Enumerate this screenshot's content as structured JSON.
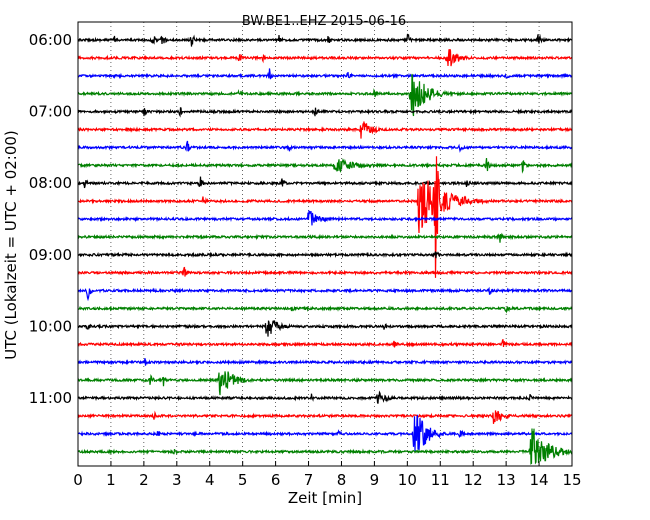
{
  "chart_data": {
    "type": "line",
    "title": "BW.BE1..EHZ 2015-06-16",
    "xlabel": "Zeit  [min]",
    "ylabel": "UTC (Lokalzeit = UTC + 02:00)",
    "xlim": [
      0,
      15
    ],
    "x_ticks": [
      "0",
      "1",
      "2",
      "3",
      "4",
      "5",
      "6",
      "7",
      "8",
      "9",
      "10",
      "11",
      "12",
      "13",
      "14",
      "15"
    ],
    "y_ticks": [
      {
        "row": 0,
        "label": "06:00"
      },
      {
        "row": 4,
        "label": "07:00"
      },
      {
        "row": 8,
        "label": "08:00"
      },
      {
        "row": 12,
        "label": "09:00"
      },
      {
        "row": 16,
        "label": "10:00"
      },
      {
        "row": 20,
        "label": "11:00"
      }
    ],
    "grid": "vertical-dotted",
    "series": [
      {
        "start": "06:00",
        "color": "#000000",
        "events": [
          {
            "t": 1.1,
            "a": 0.3
          },
          {
            "t": 2.25,
            "a": 0.5
          },
          {
            "t": 2.55,
            "a": 0.5
          },
          {
            "t": 3.45,
            "a": 0.5
          },
          {
            "t": 6.1,
            "a": 0.3
          },
          {
            "t": 7.6,
            "a": 0.3
          },
          {
            "t": 10.0,
            "a": 0.5
          },
          {
            "t": 13.95,
            "a": 0.6
          }
        ]
      },
      {
        "start": "06:15",
        "color": "#ff0000",
        "events": [
          {
            "t": 4.9,
            "a": 0.3
          },
          {
            "t": 5.6,
            "a": 0.3
          },
          {
            "t": 11.2,
            "a": 0.7,
            "w": 0.3
          }
        ]
      },
      {
        "start": "06:30",
        "color": "#0000ff",
        "events": [
          {
            "t": 5.8,
            "a": 0.5
          },
          {
            "t": 8.2,
            "a": 0.3
          },
          {
            "t": 13.0,
            "a": 0.3
          }
        ]
      },
      {
        "start": "06:45",
        "color": "#008000",
        "events": [
          {
            "t": 4.9,
            "a": 0.3
          },
          {
            "t": 9.0,
            "a": 0.3
          },
          {
            "t": 10.1,
            "a": 1.6,
            "w": 0.4
          }
        ]
      },
      {
        "start": "07:00",
        "color": "#000000",
        "events": [
          {
            "t": 2.0,
            "a": 0.3
          },
          {
            "t": 3.1,
            "a": 0.3
          },
          {
            "t": 7.2,
            "a": 0.3
          }
        ]
      },
      {
        "start": "07:15",
        "color": "#ff0000",
        "events": [
          {
            "t": 8.6,
            "a": 0.6,
            "w": 0.3
          }
        ]
      },
      {
        "start": "07:30",
        "color": "#0000ff",
        "events": [
          {
            "t": 3.3,
            "a": 0.5
          },
          {
            "t": 6.4,
            "a": 0.3
          },
          {
            "t": 11.6,
            "a": 0.3
          }
        ]
      },
      {
        "start": "07:45",
        "color": "#008000",
        "events": [
          {
            "t": 7.8,
            "a": 0.5,
            "w": 0.6
          },
          {
            "t": 12.4,
            "a": 0.5
          },
          {
            "t": 13.5,
            "a": 0.4
          }
        ]
      },
      {
        "start": "08:00",
        "color": "#000000",
        "events": [
          {
            "t": 0.2,
            "a": 0.3
          },
          {
            "t": 3.7,
            "a": 0.5
          },
          {
            "t": 6.2,
            "a": 0.3
          },
          {
            "t": 11.8,
            "a": 0.4
          }
        ]
      },
      {
        "start": "08:15",
        "color": "#ff0000",
        "events": [
          {
            "t": 3.8,
            "a": 0.4
          },
          {
            "t": 10.35,
            "a": 1.8,
            "w": 0.7
          },
          {
            "t": 10.85,
            "a": 5.0,
            "w": 0.08
          }
        ]
      },
      {
        "start": "08:30",
        "color": "#0000ff",
        "events": [
          {
            "t": 7.0,
            "a": 0.6,
            "w": 0.3
          }
        ]
      },
      {
        "start": "08:45",
        "color": "#008000",
        "events": [
          {
            "t": 12.8,
            "a": 0.4
          }
        ]
      },
      {
        "start": "09:00",
        "color": "#000000",
        "events": [
          {
            "t": 10.85,
            "a": 0.4
          }
        ]
      },
      {
        "start": "09:15",
        "color": "#ff0000",
        "events": [
          {
            "t": 3.2,
            "a": 0.5
          }
        ]
      },
      {
        "start": "09:30",
        "color": "#0000ff",
        "events": [
          {
            "t": 0.3,
            "a": 0.6
          },
          {
            "t": 12.5,
            "a": 0.3
          }
        ]
      },
      {
        "start": "09:45",
        "color": "#008000",
        "events": [
          {
            "t": 6.5,
            "a": 0.3
          },
          {
            "t": 13.0,
            "a": 0.3
          }
        ]
      },
      {
        "start": "10:00",
        "color": "#000000",
        "events": [
          {
            "t": 0.3,
            "a": 0.3
          },
          {
            "t": 5.7,
            "a": 0.8,
            "w": 0.3
          },
          {
            "t": 9.3,
            "a": 0.3
          }
        ]
      },
      {
        "start": "10:15",
        "color": "#ff0000",
        "events": [
          {
            "t": 9.6,
            "a": 0.3
          },
          {
            "t": 12.9,
            "a": 0.3
          }
        ]
      },
      {
        "start": "10:30",
        "color": "#0000ff",
        "events": [
          {
            "t": 2.0,
            "a": 0.4
          }
        ]
      },
      {
        "start": "10:45",
        "color": "#008000",
        "events": [
          {
            "t": 2.2,
            "a": 0.4
          },
          {
            "t": 2.6,
            "a": 0.4
          },
          {
            "t": 4.3,
            "a": 0.9,
            "w": 0.4
          }
        ]
      },
      {
        "start": "11:00",
        "color": "#000000",
        "events": [
          {
            "t": 7.1,
            "a": 0.3
          },
          {
            "t": 9.1,
            "a": 0.4,
            "w": 0.3
          },
          {
            "t": 13.7,
            "a": 0.3
          }
        ]
      },
      {
        "start": "11:15",
        "color": "#ff0000",
        "events": [
          {
            "t": 2.3,
            "a": 0.3
          },
          {
            "t": 12.6,
            "a": 0.5,
            "w": 0.3
          }
        ]
      },
      {
        "start": "11:30",
        "color": "#0000ff",
        "events": [
          {
            "t": 2.4,
            "a": 0.3
          },
          {
            "t": 7.9,
            "a": 0.3
          },
          {
            "t": 10.2,
            "a": 1.5,
            "w": 0.35
          },
          {
            "t": 11.6,
            "a": 0.3
          }
        ]
      },
      {
        "start": "11:45",
        "color": "#008000",
        "events": [
          {
            "t": 2.9,
            "a": 0.3
          },
          {
            "t": 13.75,
            "a": 1.6,
            "w": 0.45
          }
        ]
      }
    ]
  }
}
